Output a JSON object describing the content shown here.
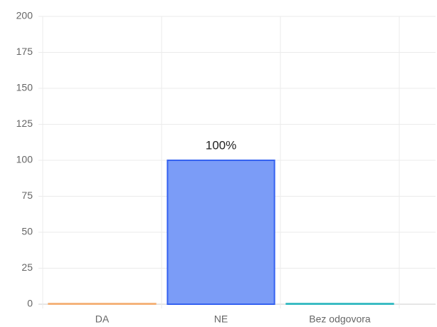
{
  "chart_data": {
    "type": "bar",
    "categories": [
      "DA",
      "NE",
      "Bez odgovora"
    ],
    "values": [
      0,
      100,
      0
    ],
    "value_labels": [
      null,
      "100%",
      null
    ],
    "colors": [
      "#fbc99a",
      "#7b9cf7",
      "#6fd0d0"
    ],
    "border_colors": [
      "#f5b47c",
      "#3562f0",
      "#3cbcc4"
    ],
    "ylim": [
      0,
      200
    ],
    "yticks": [
      0,
      25,
      50,
      75,
      100,
      125,
      150,
      175,
      200
    ],
    "grid": true
  }
}
